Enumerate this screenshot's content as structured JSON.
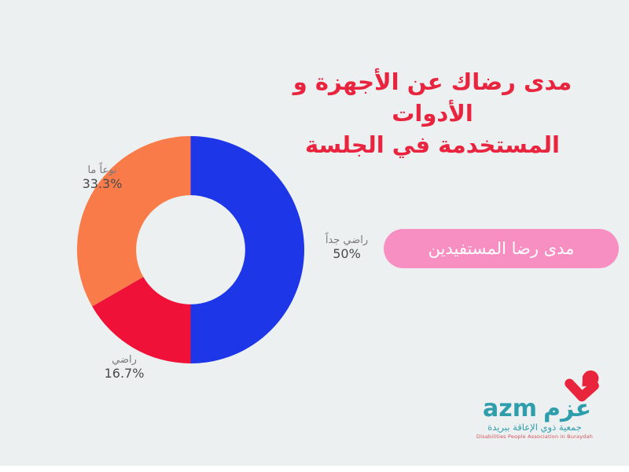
{
  "background": {
    "color": "#ECF0F0",
    "bottom_strip_color": "#FFFFFF"
  },
  "title": {
    "lines": [
      "مدى رضاك عن الأجهزة و الأدوات",
      "المستخدمة في الجلسة"
    ],
    "color": "#E8243E"
  },
  "badge": {
    "label": "مدى رضا المستفيدين",
    "bg_color": "#F78FC3",
    "text_color": "#FFFFFF"
  },
  "chart_data": {
    "type": "pie",
    "donut": true,
    "title": "مدى رضاك عن الأجهزة و الأدوات المستخدمة في الجلسة",
    "inner_radius_ratio": 0.48,
    "start_angle": "12-oclock",
    "direction": "clockwise",
    "legend": "none",
    "slices": [
      {
        "label": "راضي جداً",
        "value_pct": 50,
        "pct_label": "50%",
        "color": "#1C36E8"
      },
      {
        "label": "راضي",
        "value_pct": 16.7,
        "pct_label": "16.7%",
        "color": "#EF1137"
      },
      {
        "label": "نوعاً ما",
        "value_pct": 33.3,
        "pct_label": "33.3%",
        "color": "#F97B4A"
      }
    ],
    "label_color": {
      "name": "#7A7A7A",
      "pct": "#4A4A4A"
    }
  },
  "logo": {
    "latin": "azm",
    "arabic": "عزم",
    "subtitle_ar": "جمعية ذوي الإعاقة ببريدة",
    "subtitle_en": "Disabilities People Association in Buraydah",
    "teal": "#2E9EAD",
    "mark_red": "#E8253C",
    "subtitle_en_color": "#D9525C"
  }
}
